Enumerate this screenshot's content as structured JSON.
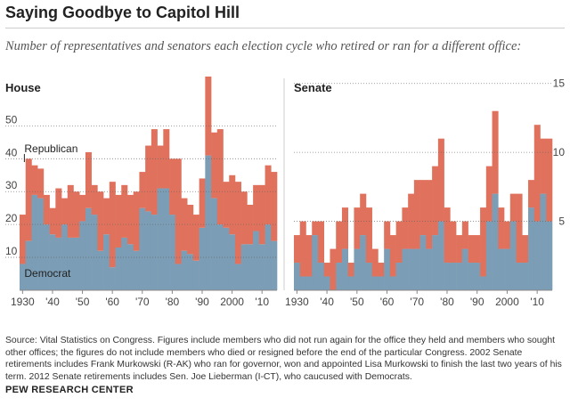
{
  "title": "Saying Goodbye to Capitol Hill",
  "subtitle": "Number of representatives and senators each election cycle who retired or ran for a different office:",
  "source": "Source: Vital Statistics on Congress. Figures include members who did not run again for the office they held and members who sought other offices; the figures do not include members who died or resigned before the end of the particular Congress. 2002 Senate retirements includes Frank Murkowski (R-AK) who ran for governor, won and appointed Lisa Murkowski to finish the last two years of his term. 2012 Senate retirements includes Sen. Joe Lieberman (I-CT), who caucused with Democrats.",
  "credit": "PEW RESEARCH CENTER",
  "colors": {
    "republican": "#e0725d",
    "democrat": "#7b9db5",
    "grid": "#999999"
  },
  "chart_data": [
    {
      "type": "bar",
      "stacked": true,
      "panel_title": "House",
      "x": [
        1930,
        1932,
        1934,
        1936,
        1938,
        1940,
        1942,
        1944,
        1946,
        1948,
        1950,
        1952,
        1954,
        1956,
        1958,
        1960,
        1962,
        1964,
        1966,
        1968,
        1970,
        1972,
        1974,
        1976,
        1978,
        1980,
        1982,
        1984,
        1986,
        1988,
        1990,
        1992,
        1994,
        1996,
        1998,
        2000,
        2002,
        2004,
        2006,
        2008,
        2010,
        2012,
        2014
      ],
      "x_tick_labels": [
        "1930",
        "'40",
        "'50",
        "'60",
        "'70",
        "'80",
        "'90",
        "2000",
        "'10"
      ],
      "x_tick_values": [
        1930,
        1940,
        1950,
        1960,
        1970,
        1980,
        1990,
        2000,
        2010
      ],
      "y_ticks": [
        10,
        20,
        30,
        40,
        50
      ],
      "ylim": [
        0,
        65
      ],
      "series": [
        {
          "name": "Democrat",
          "values": [
            8,
            15,
            29,
            28,
            20,
            17,
            16,
            20,
            16,
            16,
            21,
            25,
            23,
            12,
            17,
            7,
            13,
            16,
            14,
            12,
            25,
            24,
            23,
            31,
            31,
            23,
            8,
            12,
            11,
            9,
            19,
            41,
            28,
            20,
            19,
            17,
            8,
            14,
            14,
            18,
            14,
            20,
            15
          ]
        },
        {
          "name": "Republican",
          "values": [
            15,
            25,
            9,
            9,
            9,
            8,
            15,
            8,
            16,
            14,
            8,
            17,
            9,
            18,
            11,
            26,
            16,
            16,
            15,
            18,
            11,
            20,
            26,
            13,
            18,
            17,
            32,
            16,
            15,
            14,
            15,
            24,
            20,
            29,
            14,
            18,
            25,
            16,
            12,
            14,
            18,
            18,
            21
          ]
        }
      ],
      "labels": [
        {
          "text": "Republican",
          "x": 1931,
          "y": 42
        },
        {
          "text": "Democrat",
          "x": 1931,
          "y": 4
        }
      ]
    },
    {
      "type": "bar",
      "stacked": true,
      "panel_title": "Senate",
      "x": [
        1930,
        1932,
        1934,
        1936,
        1938,
        1940,
        1942,
        1944,
        1946,
        1948,
        1950,
        1952,
        1954,
        1956,
        1958,
        1960,
        1962,
        1964,
        1966,
        1968,
        1970,
        1972,
        1974,
        1976,
        1978,
        1980,
        1982,
        1984,
        1986,
        1988,
        1990,
        1992,
        1994,
        1996,
        1998,
        2000,
        2002,
        2004,
        2006,
        2008,
        2010,
        2012,
        2014
      ],
      "x_tick_labels": [
        "1930",
        "'40",
        "'50",
        "'60",
        "'70",
        "'80",
        "'90",
        "2000",
        "'10"
      ],
      "x_tick_values": [
        1930,
        1940,
        1950,
        1960,
        1970,
        1980,
        1990,
        2000,
        2010
      ],
      "y_ticks": [
        5,
        10,
        15
      ],
      "ylim": [
        0,
        15.5
      ],
      "series": [
        {
          "name": "Democrat",
          "values": [
            2,
            1,
            1,
            4,
            2,
            1,
            0,
            2,
            3,
            1,
            3,
            4,
            2,
            1,
            1,
            3,
            1,
            2,
            3,
            3,
            3,
            4,
            3,
            4,
            5,
            2,
            2,
            2,
            3,
            2,
            2,
            1,
            5,
            7,
            3,
            3,
            5,
            2,
            2,
            6,
            5,
            7,
            5
          ]
        },
        {
          "name": "Republican",
          "values": [
            2,
            4,
            3,
            1,
            3,
            1,
            3,
            3,
            3,
            1,
            3,
            3,
            4,
            2,
            1,
            2,
            3,
            3,
            3,
            4,
            5,
            4,
            5,
            5,
            6,
            4,
            3,
            2,
            2,
            2,
            2,
            5,
            4,
            6,
            3,
            2,
            2,
            5,
            2,
            2,
            7,
            4,
            6
          ]
        }
      ],
      "labels": []
    }
  ]
}
